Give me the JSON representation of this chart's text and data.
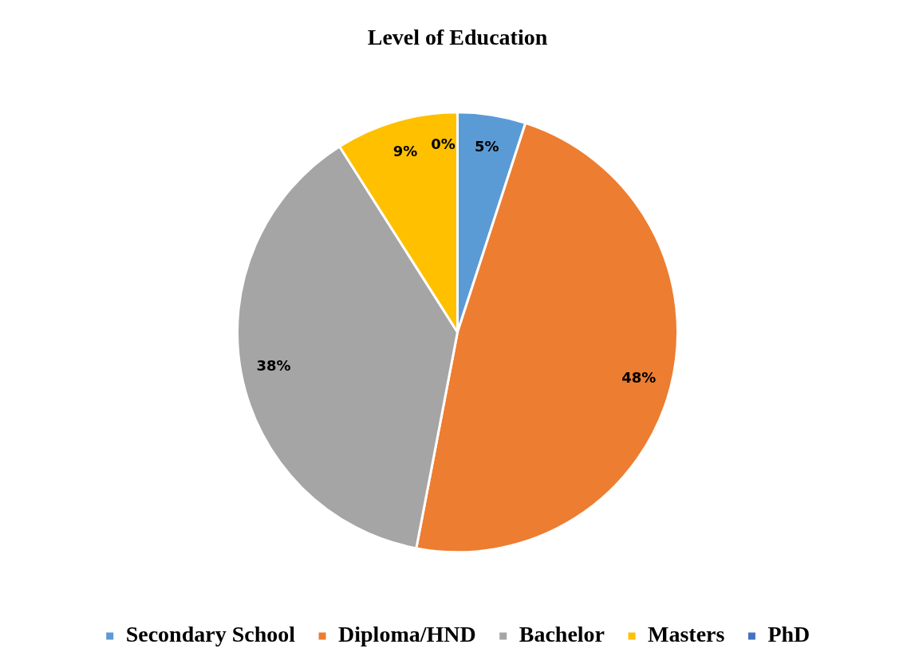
{
  "chart_data": {
    "type": "pie",
    "title": "Level of Education",
    "categories": [
      "Secondary School",
      "Diploma/HND",
      "Bachelor",
      "Masters",
      "PhD"
    ],
    "values": [
      5,
      48,
      38,
      9,
      0
    ],
    "colors": [
      "#5b9bd5",
      "#ed7d31",
      "#a5a5a5",
      "#ffc000",
      "#4472c4"
    ],
    "value_labels": [
      "5%",
      "48%",
      "38%",
      "9%",
      "0%"
    ],
    "legend": "bottom"
  }
}
